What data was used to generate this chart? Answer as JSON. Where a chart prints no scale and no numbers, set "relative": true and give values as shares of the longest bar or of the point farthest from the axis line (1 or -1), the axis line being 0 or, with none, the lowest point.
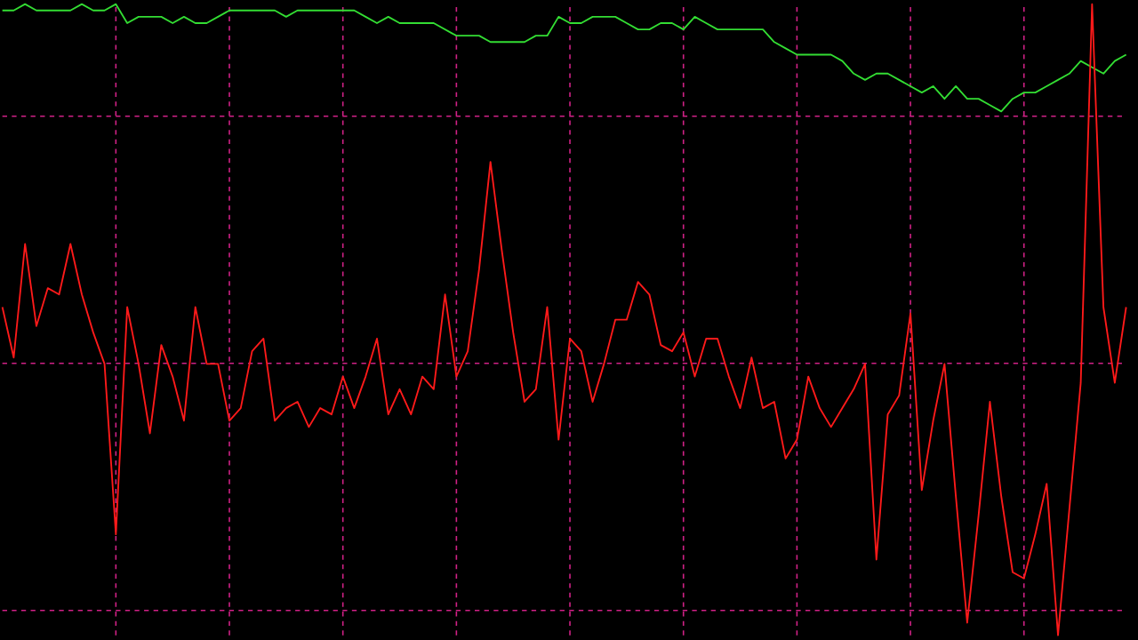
{
  "chart_data": {
    "type": "line",
    "relative": true,
    "grid": true,
    "categories": [
      null,
      null,
      null,
      null,
      null,
      null,
      null,
      null,
      null,
      null,
      null,
      null,
      null,
      null,
      null,
      null,
      null,
      null,
      null,
      null,
      null,
      null,
      null,
      null,
      null,
      null,
      null,
      null,
      null,
      null,
      null,
      null,
      null,
      null,
      null,
      null,
      null,
      null,
      null,
      null,
      null,
      null,
      null,
      null,
      null,
      null,
      null,
      null,
      null,
      null,
      null,
      null,
      null,
      null,
      null,
      null,
      null,
      null,
      null,
      null,
      null,
      null,
      null,
      null,
      null,
      null,
      null,
      null,
      null,
      null,
      null,
      null,
      null,
      null,
      null,
      null,
      null,
      null,
      null,
      null,
      null,
      null,
      null,
      null,
      null,
      null,
      null,
      null,
      null,
      null,
      null,
      null,
      null,
      null,
      null,
      null,
      null,
      null,
      null,
      null
    ],
    "series": [
      {
        "color": "#33dd33",
        "values": [
          0.99,
          0.99,
          1.0,
          0.99,
          0.99,
          0.99,
          0.99,
          1.0,
          0.99,
          0.99,
          1.0,
          0.97,
          0.98,
          0.98,
          0.98,
          0.97,
          0.98,
          0.97,
          0.97,
          0.98,
          0.99,
          0.99,
          0.99,
          0.99,
          0.99,
          0.98,
          0.99,
          0.99,
          0.99,
          0.99,
          0.99,
          0.99,
          0.98,
          0.97,
          0.98,
          0.97,
          0.97,
          0.97,
          0.97,
          0.96,
          0.95,
          0.95,
          0.95,
          0.94,
          0.94,
          0.94,
          0.94,
          0.95,
          0.95,
          0.98,
          0.97,
          0.97,
          0.98,
          0.98,
          0.98,
          0.97,
          0.96,
          0.96,
          0.97,
          0.97,
          0.96,
          0.98,
          0.97,
          0.96,
          0.96,
          0.96,
          0.96,
          0.96,
          0.94,
          0.93,
          0.92,
          0.92,
          0.92,
          0.92,
          0.91,
          0.89,
          0.88,
          0.89,
          0.89,
          0.88,
          0.87,
          0.86,
          0.87,
          0.85,
          0.87,
          0.85,
          0.85,
          0.84,
          0.83,
          0.85,
          0.86,
          0.86,
          0.87,
          0.88,
          0.89,
          0.91,
          0.9,
          0.89,
          0.91,
          0.92
        ]
      },
      {
        "color": "#ff1a1a",
        "values": [
          0.52,
          0.44,
          0.62,
          0.49,
          0.55,
          0.54,
          0.62,
          0.54,
          0.48,
          0.43,
          0.16,
          0.52,
          0.43,
          0.32,
          0.46,
          0.41,
          0.34,
          0.52,
          0.43,
          0.43,
          0.34,
          0.36,
          0.45,
          0.47,
          0.34,
          0.36,
          0.37,
          0.33,
          0.36,
          0.35,
          0.41,
          0.36,
          0.41,
          0.47,
          0.35,
          0.39,
          0.35,
          0.41,
          0.39,
          0.54,
          0.41,
          0.45,
          0.58,
          0.75,
          0.61,
          0.48,
          0.37,
          0.39,
          0.52,
          0.31,
          0.47,
          0.45,
          0.37,
          0.43,
          0.5,
          0.5,
          0.56,
          0.54,
          0.46,
          0.45,
          0.48,
          0.41,
          0.47,
          0.47,
          0.41,
          0.36,
          0.44,
          0.36,
          0.37,
          0.28,
          0.31,
          0.41,
          0.36,
          0.33,
          0.36,
          0.39,
          0.43,
          0.12,
          0.35,
          0.38,
          0.51,
          0.23,
          0.34,
          0.43,
          0.22,
          0.02,
          0.19,
          0.37,
          0.22,
          0.1,
          0.09,
          0.16,
          0.24,
          0,
          0.2,
          0.4,
          1,
          0.52,
          0.4,
          0.52
        ]
      }
    ]
  }
}
